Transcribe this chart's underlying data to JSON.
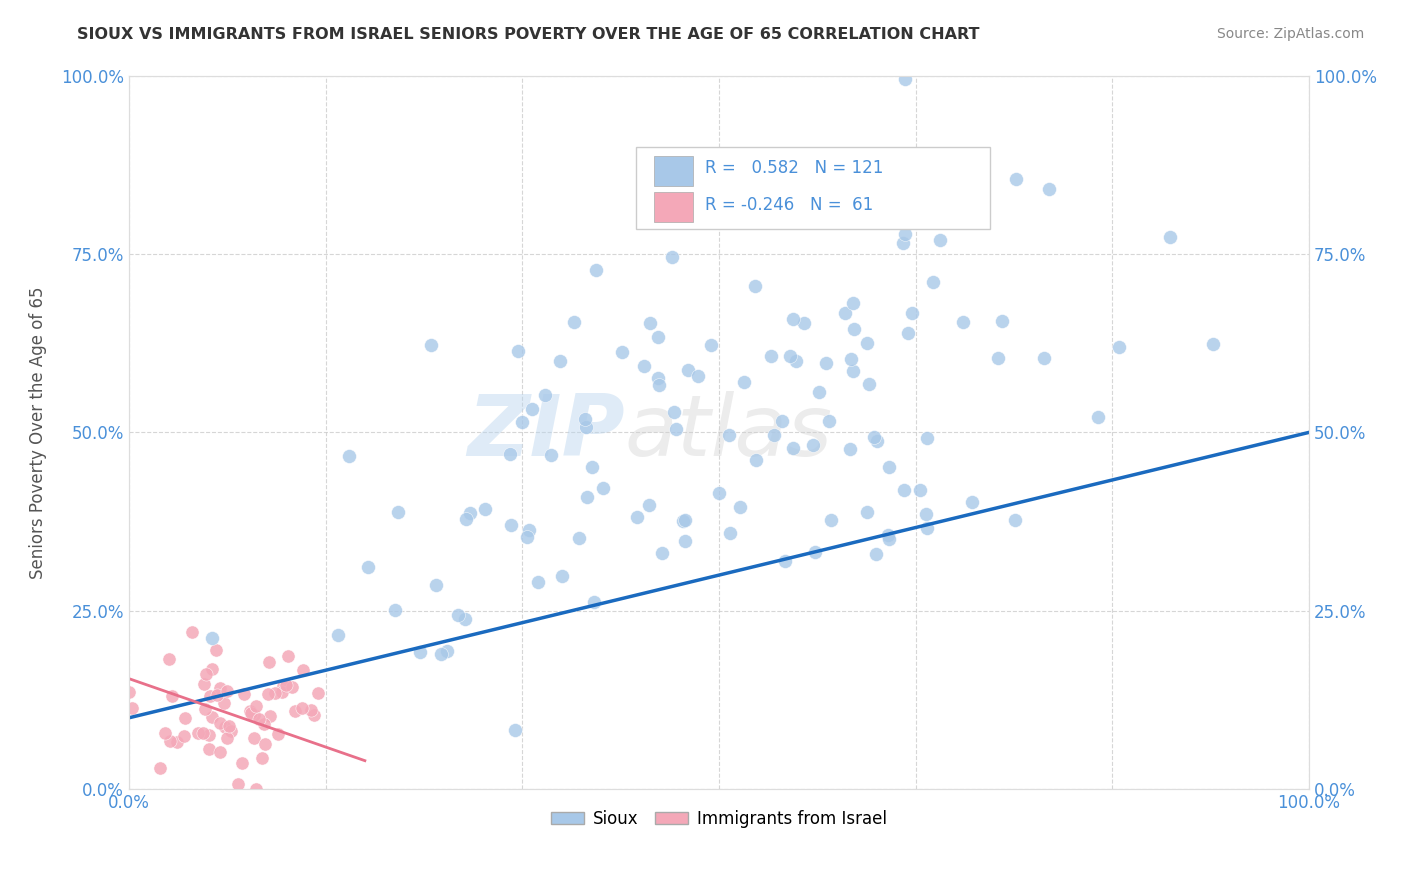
{
  "title": "SIOUX VS IMMIGRANTS FROM ISRAEL SENIORS POVERTY OVER THE AGE OF 65 CORRELATION CHART",
  "source_text": "Source: ZipAtlas.com",
  "ylabel": "Seniors Poverty Over the Age of 65",
  "xlim": [
    0,
    1
  ],
  "ylim": [
    0,
    1
  ],
  "xtick_labels": [
    "0.0%",
    "100.0%"
  ],
  "ytick_labels": [
    "0.0%",
    "25.0%",
    "50.0%",
    "75.0%",
    "100.0%"
  ],
  "ytick_vals": [
    0,
    0.25,
    0.5,
    0.75,
    1.0
  ],
  "sioux_color": "#a8c8e8",
  "israel_color": "#f4a8b8",
  "trend_sioux_color": "#1a6abf",
  "trend_israel_color": "#e8708a",
  "watermark_zip": "ZIP",
  "watermark_atlas": "atlas",
  "title_color": "#333333",
  "grid_color": "#cccccc",
  "sioux_R": 0.582,
  "sioux_N": 121,
  "israel_R": -0.246,
  "israel_N": 61,
  "legend_text_color": "#4a90d9",
  "axis_tick_color": "#4a90d9",
  "ylabel_color": "#555555",
  "source_color": "#888888",
  "sioux_trend_x": [
    0.0,
    1.0
  ],
  "sioux_trend_y": [
    0.1,
    0.5
  ],
  "israel_trend_x": [
    0.0,
    0.2
  ],
  "israel_trend_y": [
    0.155,
    0.04
  ]
}
